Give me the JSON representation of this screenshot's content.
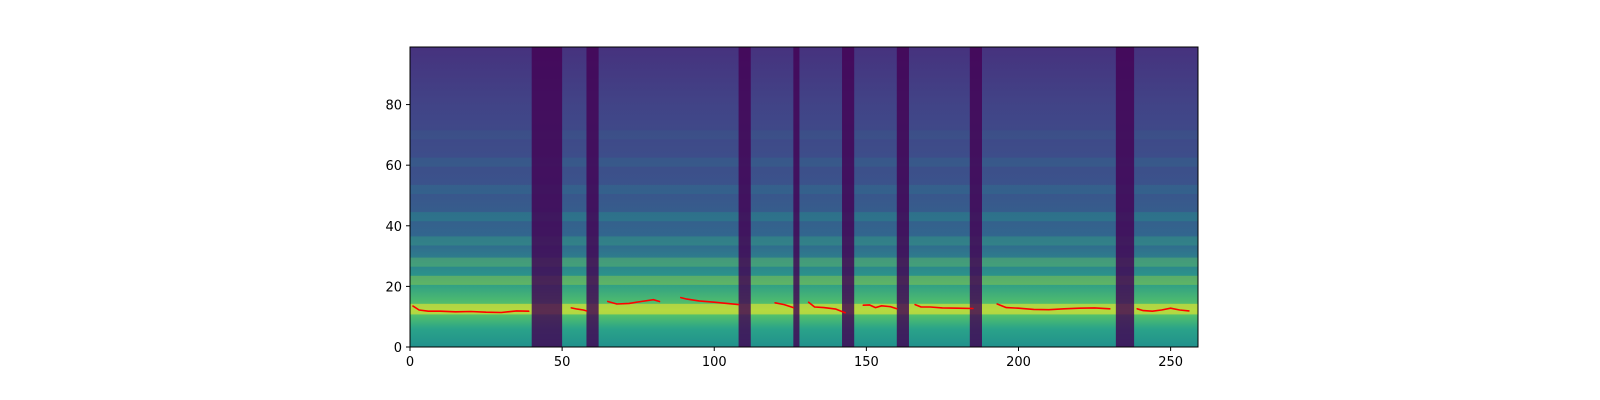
{
  "chart_data": {
    "type": "heatmap",
    "title": "",
    "xlabel": "",
    "ylabel": "",
    "xlim": [
      0,
      259
    ],
    "ylim": [
      0,
      99
    ],
    "x_ticks": [
      0,
      50,
      100,
      150,
      200,
      250
    ],
    "y_ticks": [
      0,
      20,
      40,
      60,
      80
    ],
    "x_tick_labels": [
      "0",
      "50",
      "100",
      "150",
      "200",
      "250"
    ],
    "y_tick_labels": [
      "0",
      "20",
      "40",
      "60",
      "80"
    ],
    "colormap": "viridis",
    "colormap_stops": [
      "#440154",
      "#3b528b",
      "#21918c",
      "#5ec962",
      "#fde725"
    ],
    "heatmap_description": "mel spectrogram, 100 bins x ~260 frames",
    "silence_bands": [
      [
        40,
        50
      ],
      [
        58,
        62
      ],
      [
        108,
        112
      ],
      [
        126,
        128
      ],
      [
        142,
        146
      ],
      [
        160,
        164
      ],
      [
        184,
        188
      ],
      [
        232,
        238
      ]
    ],
    "series": [
      {
        "color": "#ff0000",
        "segments": [
          {
            "x": [
              1,
              3,
              6,
              10,
              15,
              20,
              25,
              30,
              35,
              39
            ],
            "y": [
              13.5,
              12.2,
              11.8,
              11.8,
              11.6,
              11.7,
              11.5,
              11.4,
              11.9,
              11.8
            ]
          },
          {
            "x": [
              53,
              55,
              57,
              58
            ],
            "y": [
              12.9,
              12.5,
              12.2,
              11.9
            ]
          },
          {
            "x": [
              65,
              68,
              72,
              76,
              80,
              82
            ],
            "y": [
              15.0,
              14.2,
              14.4,
              15.0,
              15.6,
              15.0
            ]
          },
          {
            "x": [
              89,
              91,
              95,
              100,
              105,
              108
            ],
            "y": [
              16.3,
              15.8,
              15.2,
              14.8,
              14.3,
              14.0
            ]
          },
          {
            "x": [
              120,
              123,
              126
            ],
            "y": [
              14.6,
              14.0,
              13.0
            ]
          },
          {
            "x": [
              131,
              133,
              136,
              140,
              143
            ],
            "y": [
              14.8,
              13.2,
              13.0,
              12.5,
              11.3
            ]
          },
          {
            "x": [
              149,
              151,
              153,
              155,
              158,
              160
            ],
            "y": [
              13.8,
              13.9,
              13.0,
              13.6,
              13.3,
              12.6
            ]
          },
          {
            "x": [
              166,
              168,
              171,
              175,
              180,
              185
            ],
            "y": [
              14.0,
              13.2,
              13.2,
              12.9,
              12.8,
              12.7
            ]
          },
          {
            "x": [
              193,
              196,
              200,
              205,
              210,
              215,
              220,
              225,
              230
            ],
            "y": [
              14.2,
              13.0,
              12.8,
              12.4,
              12.3,
              12.6,
              12.8,
              12.9,
              12.6
            ]
          },
          {
            "x": [
              239,
              241,
              244,
              247,
              250,
              253,
              256
            ],
            "y": [
              12.6,
              12.0,
              11.8,
              12.2,
              12.8,
              12.2,
              11.9
            ]
          }
        ]
      }
    ]
  }
}
